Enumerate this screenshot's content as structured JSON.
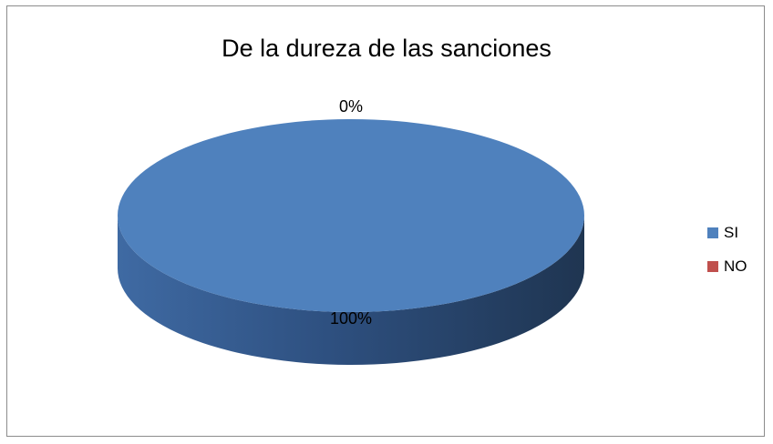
{
  "chart_data": {
    "type": "pie",
    "title": "De la dureza de las sanciones",
    "categories": [
      "SI",
      "NO"
    ],
    "values": [
      100,
      0
    ],
    "data_labels": [
      "100%",
      "0%"
    ],
    "colors": [
      "#4f81bd",
      "#c0504d"
    ],
    "three_d": true,
    "legend_position": "right"
  }
}
